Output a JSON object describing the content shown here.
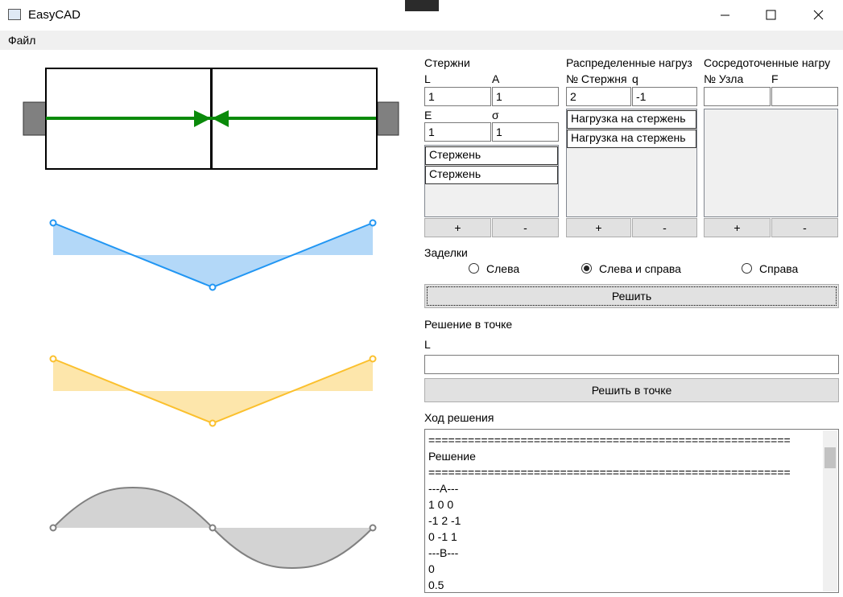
{
  "window": {
    "title": "EasyCAD"
  },
  "menu": [
    "Файл"
  ],
  "rods": {
    "title": "Стержни",
    "fields": [
      {
        "label": "L",
        "value": "1"
      },
      {
        "label": "A",
        "value": "1"
      },
      {
        "label": "E",
        "value": "1"
      },
      {
        "label": "σ",
        "value": "1"
      }
    ],
    "items": [
      "Стержень",
      "Стержень"
    ],
    "add": "+",
    "remove": "-"
  },
  "distributed": {
    "title": "Распределенные нагруз",
    "fields": [
      {
        "label": "№ Стержня",
        "value": "2"
      },
      {
        "label": "q",
        "value": "-1"
      }
    ],
    "items": [
      "Нагрузка на стержень",
      "Нагрузка на стержень"
    ],
    "add": "+",
    "remove": "-"
  },
  "concentrated": {
    "title": "Сосредоточенные нагру",
    "fields": [
      {
        "label": "№ Узла"
      },
      {
        "label": "F"
      }
    ],
    "add": "+",
    "remove": "-"
  },
  "supports": {
    "title": "Заделки",
    "options": [
      "Слева",
      "Слева и справа",
      "Справа"
    ],
    "selected": 1
  },
  "solve": "Решить",
  "point": {
    "title": "Решение в точке",
    "label": "L",
    "button": "Решить в точке"
  },
  "log": {
    "title": "Ход решения",
    "lines": [
      "=======================================================",
      "Решение",
      "=======================================================",
      "---A---",
      "1 0 0",
      "-1 2 -1",
      "0 -1 1",
      "---B---",
      "0",
      "0.5"
    ]
  }
}
